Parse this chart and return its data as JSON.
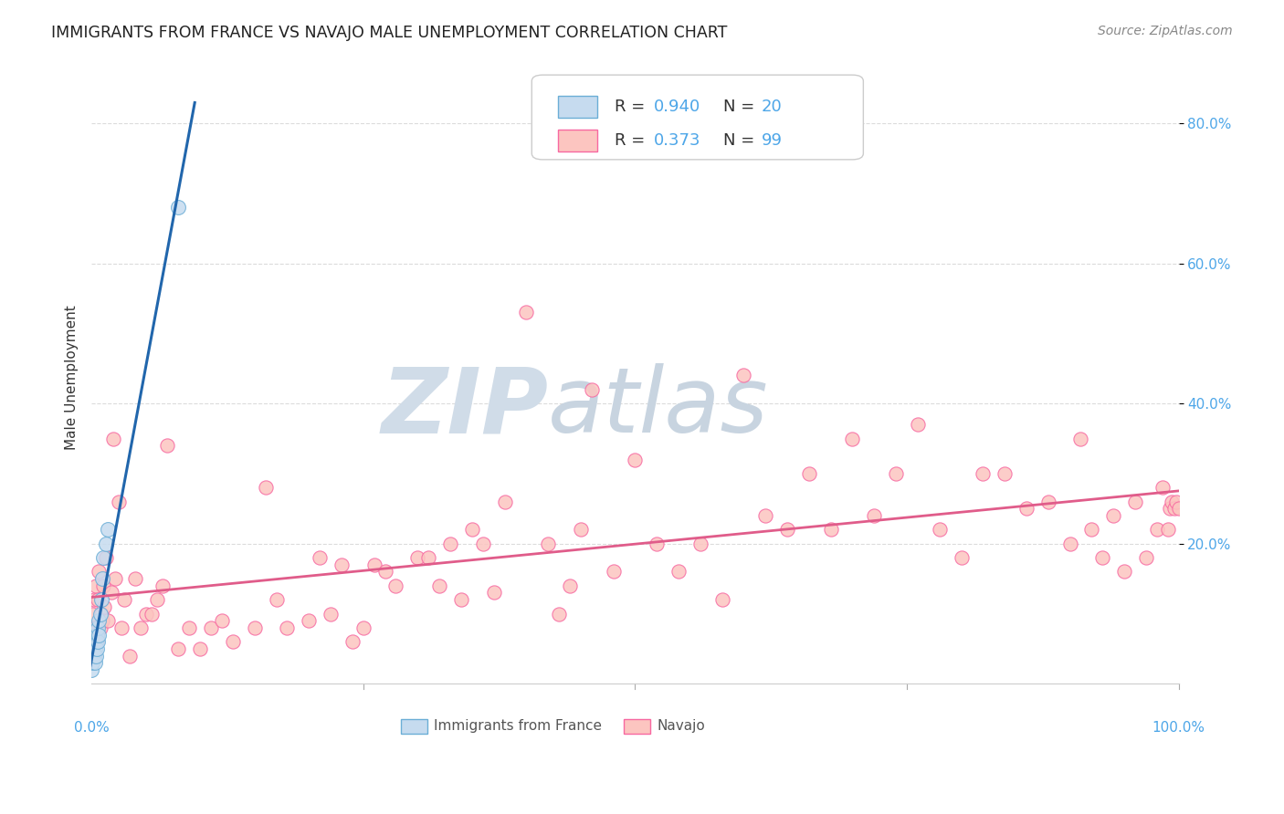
{
  "title": "IMMIGRANTS FROM FRANCE VS NAVAJO MALE UNEMPLOYMENT CORRELATION CHART",
  "source": "Source: ZipAtlas.com",
  "ylabel": "Male Unemployment",
  "xlim": [
    0,
    1.0
  ],
  "ylim": [
    0,
    0.875
  ],
  "legend_r1": "0.940",
  "legend_n1": "20",
  "legend_r2": "0.373",
  "legend_n2": "99",
  "blue_color": "#6baed6",
  "blue_fill": "#c6dbef",
  "pink_color": "#f768a1",
  "pink_fill": "#fcc5c0",
  "blue_line_color": "#2166ac",
  "pink_line_color": "#e05c8a",
  "watermark_zip": "ZIP",
  "watermark_atlas": "atlas",
  "watermark_color": "#d0dce8",
  "background_color": "#ffffff",
  "grid_color": "#cccccc",
  "france_x": [
    0.0,
    0.001,
    0.002,
    0.003,
    0.003,
    0.004,
    0.004,
    0.005,
    0.005,
    0.006,
    0.006,
    0.007,
    0.007,
    0.008,
    0.009,
    0.01,
    0.011,
    0.013,
    0.015,
    0.08
  ],
  "france_y": [
    0.02,
    0.03,
    0.04,
    0.03,
    0.05,
    0.04,
    0.06,
    0.05,
    0.07,
    0.06,
    0.08,
    0.07,
    0.09,
    0.1,
    0.12,
    0.15,
    0.18,
    0.2,
    0.22,
    0.68
  ],
  "navajo_x": [
    0.001,
    0.002,
    0.003,
    0.004,
    0.005,
    0.006,
    0.007,
    0.008,
    0.009,
    0.01,
    0.011,
    0.012,
    0.013,
    0.015,
    0.018,
    0.02,
    0.022,
    0.025,
    0.028,
    0.03,
    0.035,
    0.04,
    0.045,
    0.05,
    0.055,
    0.06,
    0.065,
    0.07,
    0.08,
    0.09,
    0.1,
    0.11,
    0.12,
    0.13,
    0.15,
    0.16,
    0.17,
    0.18,
    0.2,
    0.21,
    0.22,
    0.23,
    0.24,
    0.25,
    0.26,
    0.27,
    0.28,
    0.3,
    0.31,
    0.32,
    0.33,
    0.34,
    0.35,
    0.36,
    0.37,
    0.38,
    0.4,
    0.42,
    0.43,
    0.44,
    0.45,
    0.46,
    0.48,
    0.5,
    0.52,
    0.54,
    0.56,
    0.58,
    0.6,
    0.62,
    0.64,
    0.66,
    0.68,
    0.7,
    0.72,
    0.74,
    0.76,
    0.78,
    0.8,
    0.82,
    0.84,
    0.86,
    0.88,
    0.9,
    0.91,
    0.92,
    0.93,
    0.94,
    0.95,
    0.96,
    0.97,
    0.98,
    0.985,
    0.99,
    0.992,
    0.994,
    0.996,
    0.998,
    1.0
  ],
  "navajo_y": [
    0.1,
    0.12,
    0.08,
    0.14,
    0.06,
    0.12,
    0.16,
    0.08,
    0.1,
    0.09,
    0.14,
    0.11,
    0.18,
    0.09,
    0.13,
    0.35,
    0.15,
    0.26,
    0.08,
    0.12,
    0.04,
    0.15,
    0.08,
    0.1,
    0.1,
    0.12,
    0.14,
    0.34,
    0.05,
    0.08,
    0.05,
    0.08,
    0.09,
    0.06,
    0.08,
    0.28,
    0.12,
    0.08,
    0.09,
    0.18,
    0.1,
    0.17,
    0.06,
    0.08,
    0.17,
    0.16,
    0.14,
    0.18,
    0.18,
    0.14,
    0.2,
    0.12,
    0.22,
    0.2,
    0.13,
    0.26,
    0.53,
    0.2,
    0.1,
    0.14,
    0.22,
    0.42,
    0.16,
    0.32,
    0.2,
    0.16,
    0.2,
    0.12,
    0.44,
    0.24,
    0.22,
    0.3,
    0.22,
    0.35,
    0.24,
    0.3,
    0.37,
    0.22,
    0.18,
    0.3,
    0.3,
    0.25,
    0.26,
    0.2,
    0.35,
    0.22,
    0.18,
    0.24,
    0.16,
    0.26,
    0.18,
    0.22,
    0.28,
    0.22,
    0.25,
    0.26,
    0.25,
    0.26,
    0.25
  ]
}
